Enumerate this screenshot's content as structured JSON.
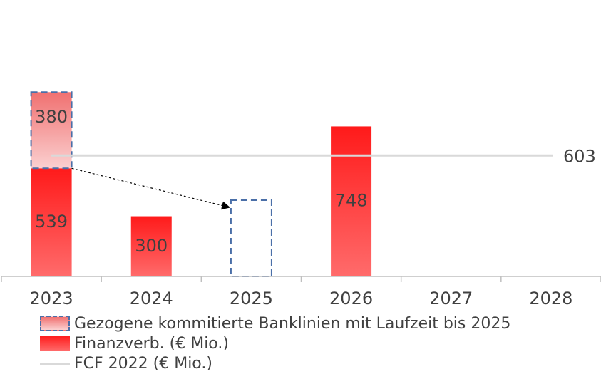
{
  "chart_data": {
    "type": "bar",
    "categories": [
      "2023",
      "2024",
      "2025",
      "2026",
      "2027",
      "2028"
    ],
    "series": [
      {
        "name": "Gezogene kommitierte Banklinien mit Laufzeit bis 2025",
        "values": [
          380,
          null,
          null,
          null,
          null,
          null
        ],
        "shifted_to": "2025",
        "style": "dashed-outline"
      },
      {
        "name": "Finanzverb. (€ Mio.)",
        "values": [
          539,
          300,
          null,
          748,
          null,
          null
        ]
      },
      {
        "name": "FCF 2022 (€ Mio.)",
        "type": "line",
        "value": 603,
        "label": "603"
      }
    ],
    "data_labels": {
      "banklines_2023": "380",
      "fin_2023": "539",
      "fin_2024": "300",
      "fin_2026": "748",
      "fcf": "603"
    },
    "ylim": [
      0,
      920
    ],
    "grid": false,
    "legend_position": "bottom-left",
    "colors": {
      "fin_top": "#ff1a1a",
      "fin_bottom": "#ff6b6b",
      "banklines_top": "#f07070",
      "banklines_bottom": "#fbd0d0",
      "banklines_border": "#4a6fa8",
      "fcf_line": "#d9d9d9",
      "axis": "#bfbfbf",
      "text": "#404040"
    }
  },
  "legend": {
    "items": [
      {
        "label": "Gezogene kommitierte Banklinien mit Laufzeit bis 2025"
      },
      {
        "label": "Finanzverb. (€ Mio.)"
      },
      {
        "label": "FCF 2022 (€ Mio.)"
      }
    ]
  }
}
